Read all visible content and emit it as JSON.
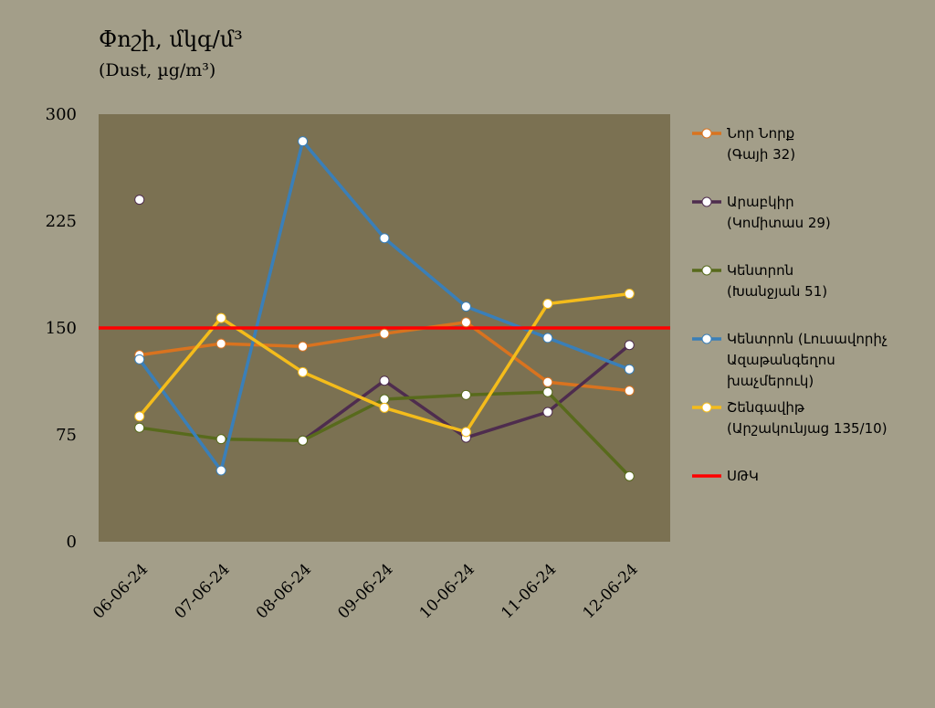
{
  "chart_data": {
    "type": "line",
    "title": "Փոշի, մկգ/մ³",
    "subtitle": "(Dust, µg/m³)",
    "categories": [
      "06-06-24",
      "07-06-24",
      "08-06-24",
      "09-06-24",
      "10-06-24",
      "11-06-24",
      "12-06-24"
    ],
    "ylim": [
      0,
      300
    ],
    "yticks": [
      0,
      75,
      150,
      225,
      300
    ],
    "grid": false,
    "legend_position": "right",
    "threshold": {
      "name": "ՍԹԿ",
      "value": 150,
      "color": "#ff0000"
    },
    "series": [
      {
        "name": "Նոր Նորք",
        "name2": "(Գայի 32)",
        "color": "#d9731f",
        "values": [
          131,
          139,
          137,
          146,
          154,
          112,
          106
        ]
      },
      {
        "name": "Արաբկիր",
        "name2": "(Կոմիտաս 29)",
        "color": "#4e2c4e",
        "values": [
          240,
          null,
          71,
          113,
          73,
          91,
          138
        ]
      },
      {
        "name": "Կենտրոն",
        "name2": "(Խանջյան 51)",
        "color": "#586a1c",
        "values": [
          80,
          72,
          71,
          100,
          103,
          105,
          46
        ]
      },
      {
        "name": "Կենտրոն (Լուսավորիչ",
        "name2": "Ազաթանգեղոս",
        "name3": "խաչմերուկ)",
        "color": "#3a7fb8",
        "values": [
          128,
          50,
          281,
          213,
          165,
          143,
          121
        ]
      },
      {
        "name": "Շենգավիթ",
        "name2": "(Արշակունյաց 135/10)",
        "color": "#f4bc1b",
        "values": [
          88,
          157,
          119,
          94,
          77,
          167,
          174
        ]
      }
    ]
  }
}
